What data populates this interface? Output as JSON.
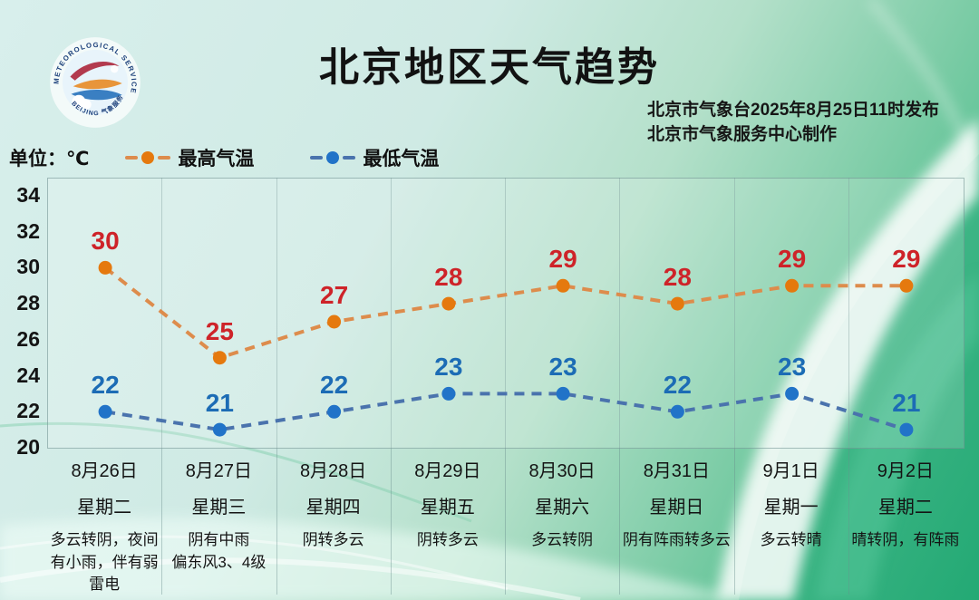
{
  "logo": {
    "arc_top": "METEOROLOGICAL SERVICE",
    "arc_bottom": "BEIJING 气象服务"
  },
  "header": {
    "title": "北京地区天气趋势",
    "issue_line1": "北京市气象台2025年8月25日11时发布",
    "issue_line2": "北京市气象服务中心制作"
  },
  "unit_label": "单位：℃",
  "legend": [
    {
      "label": "最高气温",
      "line_color": "#dd8c4c",
      "dot_color": "#e5790e"
    },
    {
      "label": "最低气温",
      "line_color": "#4a73ad",
      "dot_color": "#2173c8"
    }
  ],
  "chart_data": {
    "type": "line",
    "title": "北京地区天气趋势",
    "categories": [
      "8月26日",
      "8月27日",
      "8月28日",
      "8月29日",
      "8月30日",
      "8月31日",
      "9月1日",
      "9月2日"
    ],
    "weekdays": [
      "星期二",
      "星期三",
      "星期四",
      "星期五",
      "星期六",
      "星期日",
      "星期一",
      "星期二"
    ],
    "weather": [
      "多云转阴，夜间有小雨，伴有弱雷电",
      "阴有中雨\n偏东风3、4级",
      "阴转多云",
      "阴转多云",
      "多云转阴",
      "阴有阵雨转多云",
      "多云转晴",
      "晴转阴，有阵雨"
    ],
    "series": [
      {
        "name": "最高气温",
        "values": [
          30,
          25,
          27,
          28,
          29,
          28,
          29,
          29
        ],
        "line_color": "#dd8c4c",
        "dot_color": "#e5790e",
        "label_color": "#ce2329"
      },
      {
        "name": "最低气温",
        "values": [
          22,
          21,
          22,
          23,
          23,
          22,
          23,
          21
        ],
        "line_color": "#4a73ad",
        "dot_color": "#2173c8",
        "label_color": "#1c6cb5"
      }
    ],
    "ylabel": "℃",
    "yticks": [
      34,
      32,
      30,
      28,
      26,
      24,
      22,
      20
    ],
    "ylim": [
      20,
      35
    ],
    "grid": "vertical-columns-only",
    "legend_position": "top-left",
    "line_style": "dashed"
  }
}
